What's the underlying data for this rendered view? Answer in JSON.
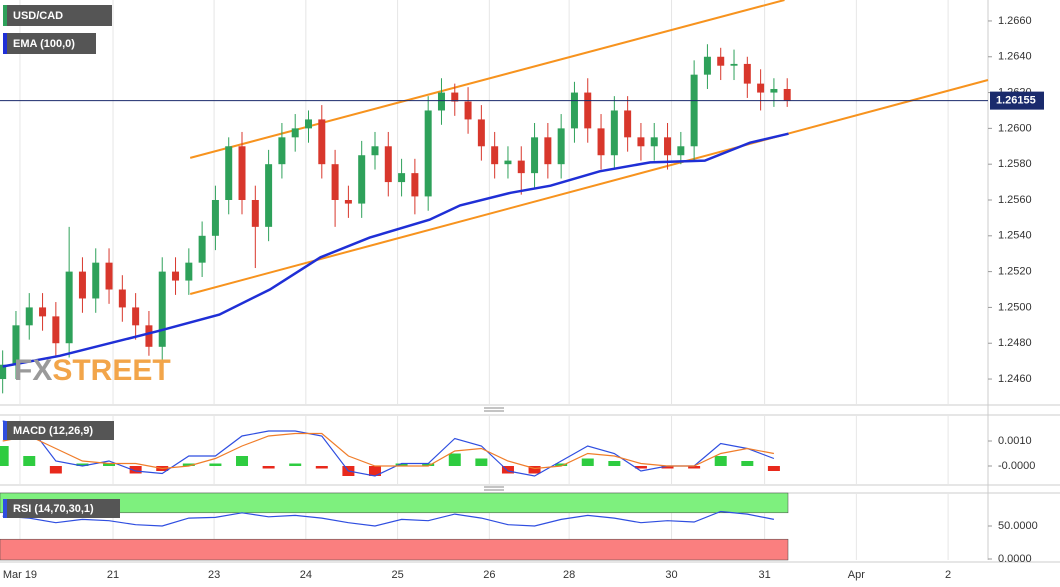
{
  "chart_data": [
    {
      "type": "candlestick",
      "title": "USD/CAD",
      "x": [
        0,
        1,
        2,
        3,
        4,
        5,
        6,
        7,
        8,
        9,
        10,
        11,
        12,
        13,
        14,
        15,
        16,
        17,
        18,
        19,
        20,
        21,
        22,
        23,
        24,
        25,
        26,
        27,
        28,
        29,
        30,
        31,
        32,
        33,
        34,
        35,
        36,
        37,
        38,
        39,
        40,
        41,
        42,
        43,
        44,
        45,
        46,
        47,
        48,
        49,
        50,
        51,
        52,
        53,
        54,
        55,
        56,
        57,
        58,
        59
      ],
      "open": [
        1.246,
        1.2468,
        1.249,
        1.25,
        1.2495,
        1.248,
        1.252,
        1.2505,
        1.2525,
        1.251,
        1.25,
        1.249,
        1.2478,
        1.252,
        1.2515,
        1.2525,
        1.254,
        1.256,
        1.259,
        1.256,
        1.2545,
        1.258,
        1.2595,
        1.26,
        1.2605,
        1.258,
        1.256,
        1.2558,
        1.2585,
        1.259,
        1.257,
        1.2575,
        1.2562,
        1.261,
        1.262,
        1.2615,
        1.2605,
        1.259,
        1.258,
        1.2582,
        1.2575,
        1.2595,
        1.258,
        1.26,
        1.262,
        1.26,
        1.2585,
        1.261,
        1.2595,
        1.259,
        1.2595,
        1.2585,
        1.259,
        1.263,
        1.264,
        1.2635,
        1.2636,
        1.2625,
        1.262,
        1.2622
      ],
      "high": [
        1.2476,
        1.2498,
        1.2508,
        1.2508,
        1.2503,
        1.2545,
        1.2528,
        1.2533,
        1.2533,
        1.2518,
        1.2508,
        1.2498,
        1.2528,
        1.2528,
        1.2533,
        1.2548,
        1.2568,
        1.2595,
        1.2598,
        1.2568,
        1.2588,
        1.2603,
        1.2608,
        1.261,
        1.2613,
        1.2588,
        1.2568,
        1.2593,
        1.2598,
        1.2598,
        1.2583,
        1.2583,
        1.2618,
        1.2628,
        1.2625,
        1.2623,
        1.2613,
        1.2598,
        1.259,
        1.259,
        1.2603,
        1.2603,
        1.2608,
        1.2626,
        1.2628,
        1.2608,
        1.2618,
        1.2618,
        1.2603,
        1.2603,
        1.2603,
        1.2598,
        1.2638,
        1.2647,
        1.2645,
        1.2644,
        1.264,
        1.2633,
        1.2628,
        1.2628
      ],
      "low": [
        1.2452,
        1.246,
        1.2482,
        1.2487,
        1.2472,
        1.2472,
        1.2497,
        1.2497,
        1.2502,
        1.2492,
        1.2482,
        1.2473,
        1.247,
        1.2507,
        1.2507,
        1.2517,
        1.2532,
        1.2552,
        1.2552,
        1.2522,
        1.2537,
        1.2572,
        1.2587,
        1.2592,
        1.2572,
        1.2545,
        1.255,
        1.255,
        1.2577,
        1.2562,
        1.2562,
        1.2552,
        1.2554,
        1.2602,
        1.2607,
        1.2597,
        1.2582,
        1.2572,
        1.2572,
        1.2563,
        1.2567,
        1.2572,
        1.2572,
        1.2592,
        1.2592,
        1.2577,
        1.2577,
        1.2587,
        1.2582,
        1.2582,
        1.2577,
        1.258,
        1.2582,
        1.2622,
        1.2627,
        1.2627,
        1.2617,
        1.261,
        1.2612,
        1.2612
      ],
      "close": [
        1.2468,
        1.249,
        1.25,
        1.2495,
        1.248,
        1.252,
        1.2505,
        1.2525,
        1.251,
        1.25,
        1.249,
        1.2478,
        1.252,
        1.2515,
        1.2525,
        1.254,
        1.256,
        1.259,
        1.256,
        1.2545,
        1.258,
        1.2595,
        1.26,
        1.2605,
        1.258,
        1.256,
        1.2558,
        1.2585,
        1.259,
        1.257,
        1.2575,
        1.2562,
        1.261,
        1.262,
        1.2615,
        1.2605,
        1.259,
        1.258,
        1.2582,
        1.2575,
        1.2595,
        1.258,
        1.26,
        1.262,
        1.26,
        1.2585,
        1.261,
        1.2595,
        1.259,
        1.2595,
        1.2585,
        1.259,
        1.263,
        1.264,
        1.2635,
        1.2636,
        1.2625,
        1.262,
        1.2622,
        1.26155
      ],
      "up_color": "#2ea15a",
      "down_color": "#d8372c",
      "series": [
        {
          "name": "EMA (100,0)",
          "color": "#1f2fd6",
          "x": [
            0,
            4.3,
            11.8,
            16.3,
            20.1,
            23.9,
            27.6,
            32.1,
            34.4,
            38.2,
            41.2,
            44.9,
            48.7,
            52.8,
            56.2,
            59.1
          ],
          "values": [
            1.2467,
            1.2473,
            1.2487,
            1.2496,
            1.251,
            1.2528,
            1.2539,
            1.2549,
            1.2557,
            1.2564,
            1.2568,
            1.2576,
            1.2581,
            1.2582,
            1.2592,
            1.2597
          ]
        }
      ],
      "trendlines": [
        {
          "color": "#f7931e",
          "x": [
            14.1,
            58.8
          ],
          "values": [
            1.25835,
            1.26717
          ]
        },
        {
          "color": "#f7931e",
          "x": [
            14.1,
            74.1
          ],
          "values": [
            1.25075,
            1.2627
          ]
        }
      ],
      "current_price": 1.26155,
      "price_color": "#1a2a6c",
      "xlim": [
        -0.2,
        74.1
      ],
      "ylim": [
        1.24455,
        1.26717
      ],
      "yticks": [
        {
          "value": 1.246,
          "label": "1.2460"
        },
        {
          "value": 1.248,
          "label": "1.2480"
        },
        {
          "value": 1.25,
          "label": "1.2500"
        },
        {
          "value": 1.252,
          "label": "1.2520"
        },
        {
          "value": 1.254,
          "label": "1.2540"
        },
        {
          "value": 1.256,
          "label": "1.2560"
        },
        {
          "value": 1.258,
          "label": "1.2580"
        },
        {
          "value": 1.26,
          "label": "1.2600"
        },
        {
          "value": 1.262,
          "label": "1.2620"
        },
        {
          "value": 1.264,
          "label": "1.2640"
        },
        {
          "value": 1.266,
          "label": "1.2660"
        }
      ],
      "xticks": [
        {
          "value": 1.3,
          "label": "Mar 19"
        },
        {
          "value": 8.3,
          "label": "21"
        },
        {
          "value": 15.9,
          "label": "23"
        },
        {
          "value": 22.8,
          "label": "24"
        },
        {
          "value": 29.7,
          "label": "25"
        },
        {
          "value": 36.6,
          "label": "26"
        },
        {
          "value": 42.6,
          "label": "28"
        },
        {
          "value": 50.3,
          "label": "30"
        },
        {
          "value": 57.3,
          "label": "31"
        },
        {
          "value": 64.2,
          "label": "Apr"
        },
        {
          "value": 71.1,
          "label": "2"
        }
      ],
      "grid": "x"
    },
    {
      "type": "macd",
      "title": "MACD (12,26,9)",
      "x": [
        0,
        2,
        4,
        6,
        8,
        10,
        12,
        14,
        16,
        18,
        20,
        22,
        24,
        26,
        28,
        30,
        32,
        34,
        36,
        38,
        40,
        42,
        44,
        46,
        48,
        50,
        52,
        54,
        56,
        58
      ],
      "histogram": [
        0.0008,
        0.0004,
        -0.0003,
        0.0001,
        0.0001,
        -0.0003,
        -0.0002,
        0.0001,
        0.0001,
        0.0004,
        -0.0001,
        0.0001,
        -0.0001,
        -0.0004,
        -0.0004,
        0.0001,
        0.0001,
        0.0005,
        0.0003,
        -0.0003,
        -0.0003,
        0.0001,
        0.0003,
        0.0002,
        -0.0001,
        -0.0001,
        -0.0001,
        0.0004,
        0.0002,
        -0.0002
      ],
      "up_color": "#2ecc40",
      "down_color": "#e8291c",
      "series": [
        {
          "color": "#2f4ee0",
          "values": [
            0.0018,
            0.0016,
            0.0002,
            0.0,
            0.0002,
            -0.0002,
            -0.0003,
            0.0004,
            0.0004,
            0.0012,
            0.0014,
            0.0014,
            0.0012,
            -0.0002,
            -0.0004,
            0.0001,
            0.0001,
            0.0011,
            0.0008,
            -0.0002,
            -0.0004,
            0.0002,
            0.0008,
            0.0005,
            -0.0002,
            0.0,
            0.0,
            0.0009,
            0.0007,
            0.0003
          ]
        },
        {
          "color": "#f07d2a",
          "values": [
            0.001,
            0.0012,
            0.0007,
            0.0002,
            0.0001,
            0.0001,
            -0.0001,
            0.0,
            0.0003,
            0.0008,
            0.0012,
            0.0013,
            0.0013,
            0.0004,
            0.0,
            0.0,
            0.0,
            0.0006,
            0.0007,
            0.0002,
            -0.0001,
            0.0,
            0.0005,
            0.0004,
            0.0001,
            0.0,
            0.0,
            0.0005,
            0.0007,
            0.0005
          ]
        }
      ],
      "ylim": [
        -0.00076,
        0.00204
      ],
      "yticks": [
        {
          "value": 0.001,
          "label": "0.0010"
        },
        {
          "value": 0,
          "label": "-0.0000"
        }
      ]
    },
    {
      "type": "rsi",
      "title": "RSI (14,70,30,1)",
      "x": [
        0,
        2,
        4,
        6,
        8,
        10,
        12,
        14,
        16,
        18,
        20,
        22,
        24,
        26,
        28,
        30,
        32,
        34,
        36,
        38,
        40,
        42,
        44,
        46,
        48,
        50,
        52,
        54,
        56,
        58
      ],
      "series": [
        {
          "color": "#2f4ee0",
          "values": [
            65,
            62,
            55,
            60,
            58,
            52,
            50,
            62,
            63,
            70,
            64,
            66,
            62,
            55,
            50,
            60,
            58,
            68,
            62,
            52,
            50,
            60,
            66,
            62,
            55,
            58,
            56,
            72,
            68,
            60
          ]
        }
      ],
      "levels": [
        70,
        30
      ],
      "level_colors": [
        "#7ef07e",
        "#fa7f7f"
      ],
      "ylim": [
        -1.5,
        100
      ],
      "yticks": [
        {
          "value": 50,
          "label": "50.0000"
        },
        {
          "value": 0,
          "label": "0.0000"
        }
      ]
    }
  ],
  "watermark": [
    "FX",
    "STREET"
  ]
}
